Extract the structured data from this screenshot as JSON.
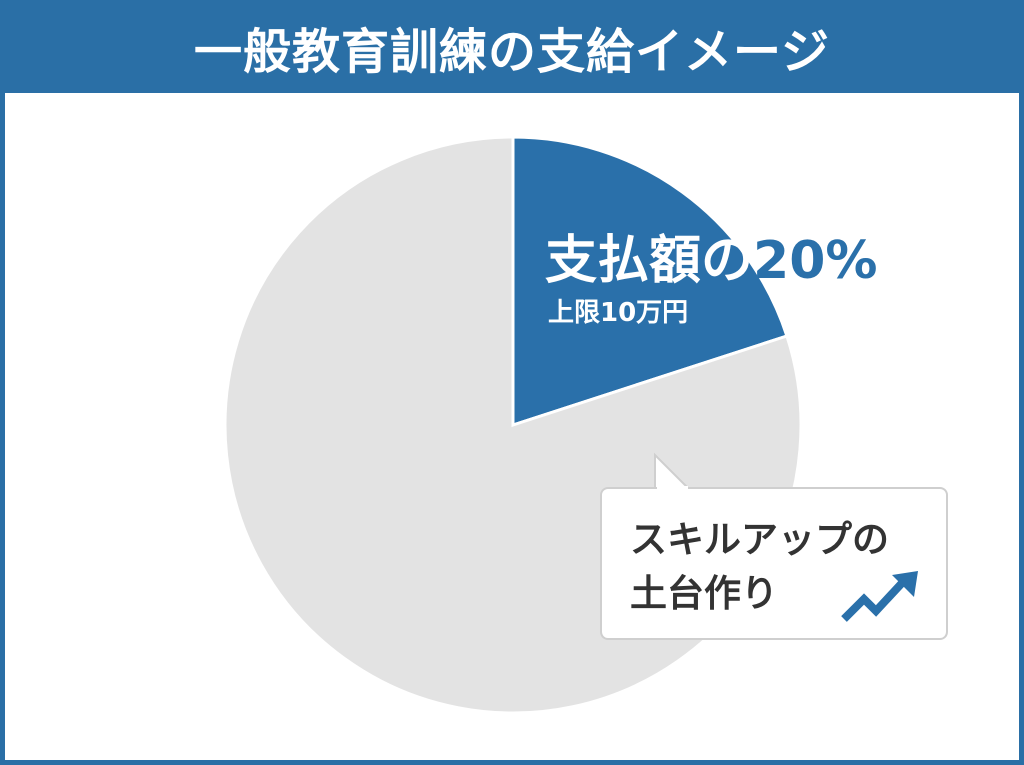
{
  "header": {
    "title": "一般教育訓練の支給イメージ"
  },
  "chart_data": {
    "type": "pie",
    "values": [
      20,
      80
    ],
    "colors": [
      "#2a70aa",
      "#e3e3e3"
    ],
    "slice_labels": [
      {
        "main": "支払額の",
        "percent": "20%",
        "sub": "上限10万円"
      },
      {
        "callout_line1": "スキルアップの",
        "callout_line2": "土台作り"
      }
    ]
  },
  "callout": {
    "icon": "trending-up-icon",
    "line1": "スキルアップの",
    "line2": "土台作り"
  },
  "colors": {
    "accent": "#2a6fa6",
    "rest": "#e3e3e3",
    "text": "#333333"
  }
}
